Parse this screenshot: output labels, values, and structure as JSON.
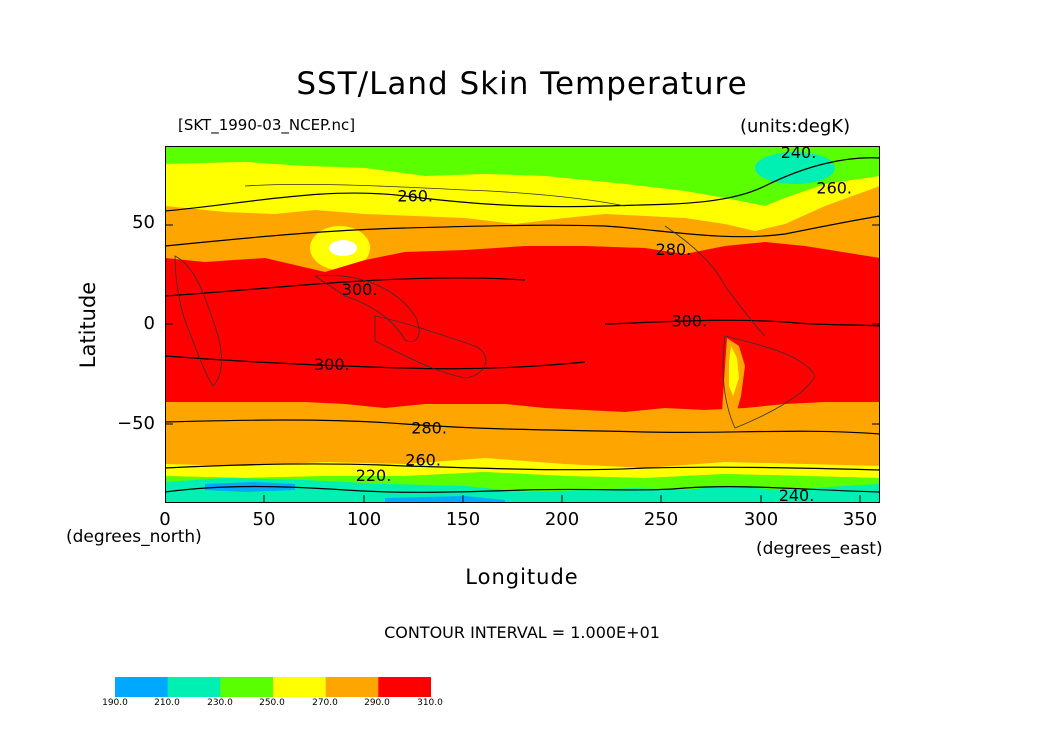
{
  "title": "SST/Land Skin Temperature",
  "file_label": "[SKT_1990-03_NCEP.nc]",
  "units_label": "(units:degK)",
  "y_axis": {
    "label": "Latitude",
    "unit_label": "(degrees_north)",
    "ticks": [
      "50",
      "0",
      "−50"
    ],
    "tick_values": [
      50,
      0,
      -50
    ],
    "range": [
      -90,
      90
    ]
  },
  "x_axis": {
    "label": "Longitude",
    "unit_label": "(degrees_east)",
    "ticks": [
      "0",
      "50",
      "100",
      "150",
      "200",
      "250",
      "300",
      "350"
    ],
    "tick_values": [
      0,
      50,
      100,
      150,
      200,
      250,
      300,
      350
    ],
    "range": [
      0,
      360
    ]
  },
  "contour_interval": "CONTOUR INTERVAL = 1.000E+01",
  "contour_labels": [
    {
      "text": "240.",
      "lon": 310,
      "lat": 87
    },
    {
      "text": "260.",
      "lon": 117,
      "lat": 65
    },
    {
      "text": "260.",
      "lon": 328,
      "lat": 69
    },
    {
      "text": "280.",
      "lon": 247,
      "lat": 38
    },
    {
      "text": "300.",
      "lon": 89,
      "lat": 18
    },
    {
      "text": "300.",
      "lon": 255,
      "lat": 2
    },
    {
      "text": "300.",
      "lon": 75,
      "lat": -20
    },
    {
      "text": "280.",
      "lon": 124,
      "lat": -52
    },
    {
      "text": "260.",
      "lon": 121,
      "lat": -68
    },
    {
      "text": "220.",
      "lon": 96,
      "lat": -76
    },
    {
      "text": "240.",
      "lon": 309,
      "lat": -86
    }
  ],
  "colorbar": {
    "labels": [
      "190.0",
      "210.0",
      "230.0",
      "250.0",
      "270.0",
      "290.0",
      "310.0"
    ],
    "colors": [
      "#00a8ff",
      "#00f0b4",
      "#5aff00",
      "#ffff00",
      "#ffa500",
      "#ff0000"
    ]
  },
  "colors": {
    "band_180_230": "#00a8ff",
    "band_230_250": "#00f0b4",
    "band_250_270": "#5aff00",
    "band_270_280": "#ffff00",
    "band_280_290": "#ffa500",
    "band_290_310": "#ff0000",
    "contour": "#000000",
    "coast": "#333333"
  }
}
